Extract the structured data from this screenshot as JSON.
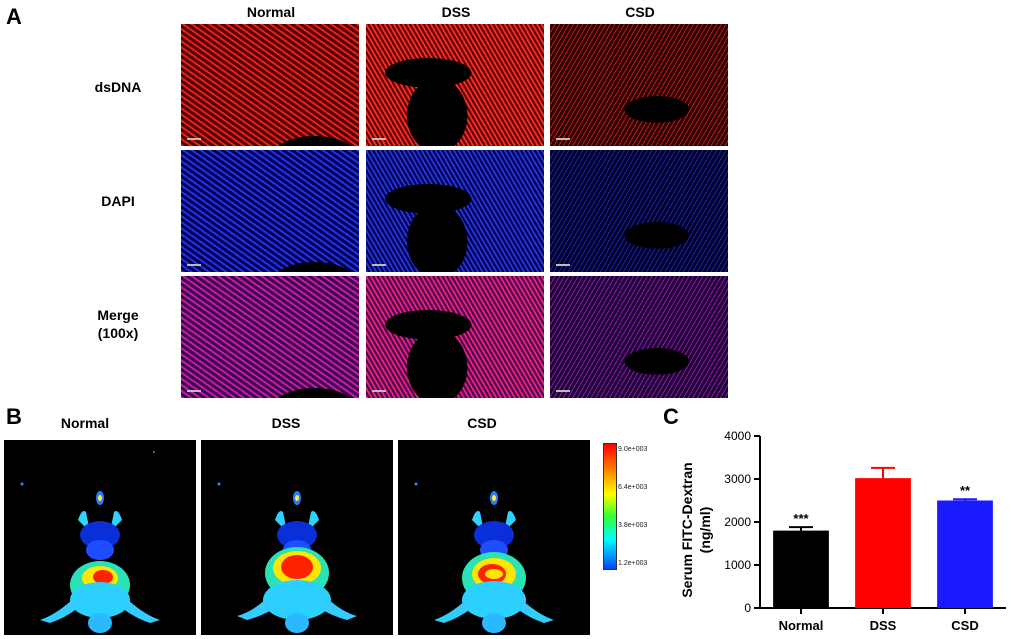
{
  "panel_a": {
    "letter": "A",
    "columns": [
      "Normal",
      "DSS",
      "CSD"
    ],
    "rows": [
      {
        "label_line1": "dsDNA",
        "label_line2": "",
        "color": "#e0201a"
      },
      {
        "label_line1": "DAPI",
        "label_line2": "",
        "color": "#2a3cf0"
      },
      {
        "label_line1": "Merge",
        "label_line2": "(100x)",
        "color": "#c02a8a"
      }
    ]
  },
  "panel_b": {
    "letter": "B",
    "columns": [
      "Normal",
      "DSS",
      "CSD"
    ],
    "colorbar_ticks": [
      "9.0e+003",
      "6.4e+003",
      "3.8e+003",
      "1.2e+003"
    ]
  },
  "panel_c": {
    "letter": "C"
  },
  "chart_data": {
    "type": "bar",
    "categories": [
      "Normal",
      "DSS",
      "CSD"
    ],
    "values": [
      1800,
      3020,
      2500
    ],
    "errors": [
      80,
      240,
      30
    ],
    "significance": [
      "***",
      "",
      "**"
    ],
    "colors": [
      "#000000",
      "#ff0000",
      "#1a1aff"
    ],
    "title": "",
    "xlabel": "",
    "ylabel_line1": "Serum FITC-Dextran",
    "ylabel_line2": "(ng/ml)",
    "ylim": [
      0,
      4000
    ],
    "yticks": [
      0,
      1000,
      2000,
      3000,
      4000
    ]
  }
}
